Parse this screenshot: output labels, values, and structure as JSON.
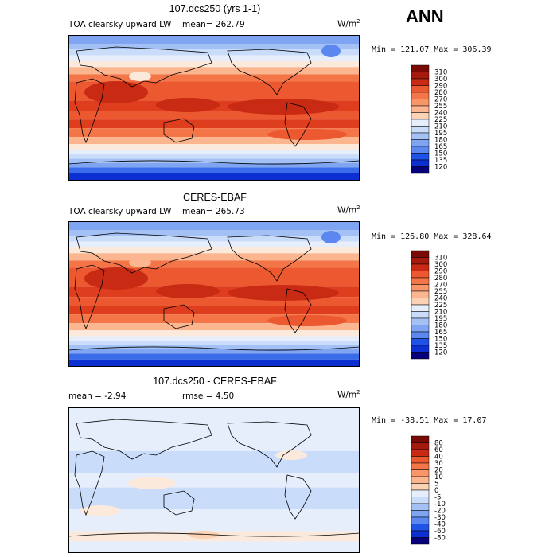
{
  "season": "ANN",
  "colors": {
    "abs_scale": [
      "#08007a",
      "#0b2fd0",
      "#1f52e6",
      "#3a6be8",
      "#5b87ee",
      "#7ea4f2",
      "#a4c1f6",
      "#c9dcfa",
      "#e6eefc",
      "#fbeadc",
      "#fcd2b4",
      "#fbb690",
      "#f8966a",
      "#f37548",
      "#ec5830",
      "#df3e1e",
      "#c82a14",
      "#a51a0c",
      "#7a0a06"
    ],
    "diff_scale": [
      "#08007a",
      "#0b2fd0",
      "#1f52e6",
      "#3a6be8",
      "#5b87ee",
      "#7ea4f2",
      "#a4c1f6",
      "#c9dcfa",
      "#e6eefc",
      "#fbeadc",
      "#fcd2b4",
      "#fbb690",
      "#f8966a",
      "#f37548",
      "#ec5830",
      "#df3e1e",
      "#c82a14",
      "#a51a0c",
      "#7a0a06"
    ]
  },
  "panels": [
    {
      "title": "107.dcs250 (yrs 1-1)",
      "variable": "TOA clearsky upward LW",
      "stat": "mean=  262.79",
      "units": "W/m",
      "units_exp": "2",
      "minmax": "Min = 121.07 Max = 306.39",
      "kind": "abs",
      "levels": [
        "310",
        "300",
        "290",
        "280",
        "270",
        "255",
        "240",
        "225",
        "210",
        "195",
        "180",
        "165",
        "150",
        "135",
        "120"
      ]
    },
    {
      "title": "CERES-EBAF",
      "variable": "TOA clearsky upward LW",
      "stat": "mean=  265.73",
      "units": "W/m",
      "units_exp": "2",
      "minmax": "Min = 126.80 Max = 328.64",
      "kind": "abs",
      "levels": [
        "310",
        "300",
        "290",
        "280",
        "270",
        "255",
        "240",
        "225",
        "210",
        "195",
        "180",
        "165",
        "150",
        "135",
        "120"
      ]
    },
    {
      "title": "107.dcs250 - CERES-EBAF",
      "variable": "",
      "stat_mean": "mean =   -2.94",
      "stat_rmse": "rmse =    4.50",
      "units": "W/m",
      "units_exp": "2",
      "minmax": "Min = -38.51 Max =  17.07",
      "kind": "diff",
      "levels": [
        "80",
        "60",
        "40",
        "30",
        "20",
        "10",
        "5",
        "0",
        "-5",
        "-10",
        "-20",
        "-30",
        "-40",
        "-60",
        "-80"
      ]
    }
  ]
}
